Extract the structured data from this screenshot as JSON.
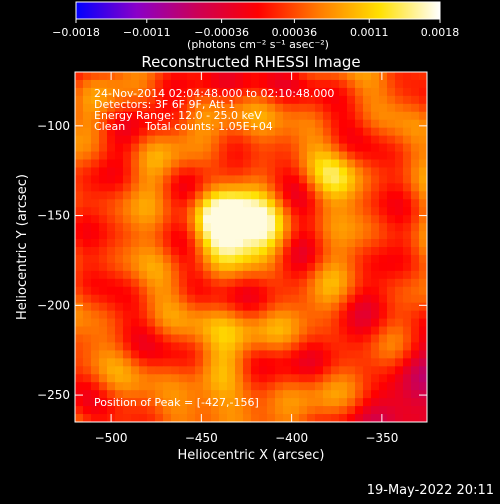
{
  "chart_data": {
    "type": "heatmap",
    "title": "Reconstructed RHESSI Image",
    "xlabel": "Heliocentric X (arcsec)",
    "ylabel": "Heliocentric Y (arcsec)",
    "xlim": [
      -520,
      -325
    ],
    "ylim": [
      -265,
      -70
    ],
    "x_ticks": [
      -500,
      -450,
      -400,
      -350
    ],
    "y_ticks": [
      -250,
      -200,
      -150,
      -100
    ],
    "x_tick_labels": [
      "−500",
      "−450",
      "−400",
      "−350"
    ],
    "y_tick_labels": [
      "−250",
      "−200",
      "−150",
      "−100"
    ],
    "colorbar": {
      "min": -0.0018,
      "max": 0.0018,
      "tick_values": [
        -0.0018,
        -0.0011,
        -0.00036,
        0.00036,
        0.0011,
        0.0018
      ],
      "tick_labels": [
        "−0.0018",
        "−0.0011",
        "−0.00036",
        "0.00036",
        "0.0011",
        "0.0018"
      ],
      "unit_label": "(photons cm⁻² s⁻¹ asec⁻²)",
      "colors": [
        "#0000ff",
        "#8a00c8",
        "#cc0055",
        "#ff0000",
        "#ff7a00",
        "#ffe000",
        "#ffffff"
      ]
    },
    "peak": {
      "x": -427,
      "y": -156
    },
    "sources": [
      {
        "x": -432,
        "y": -155,
        "sigma": 16,
        "amp": 1.0
      },
      {
        "x": -440,
        "y": -235,
        "sigma": 11,
        "amp": 0.6
      },
      {
        "x": -375,
        "y": -130,
        "sigma": 10,
        "amp": 0.4
      }
    ],
    "annotations": {
      "time": "24-Nov-2014 02:04:48.000 to 02:10:48.000",
      "detectors": "Detectors: 3F 6F 9F, Att 1",
      "energy": "Energy Range: 12.0 - 25.0 keV",
      "method": "Clean",
      "counts": "Total counts: 1.05E+04",
      "peak_label": "Position of Peak = [-427,-156]"
    }
  },
  "footer_date": "19-May-2022 20:11"
}
